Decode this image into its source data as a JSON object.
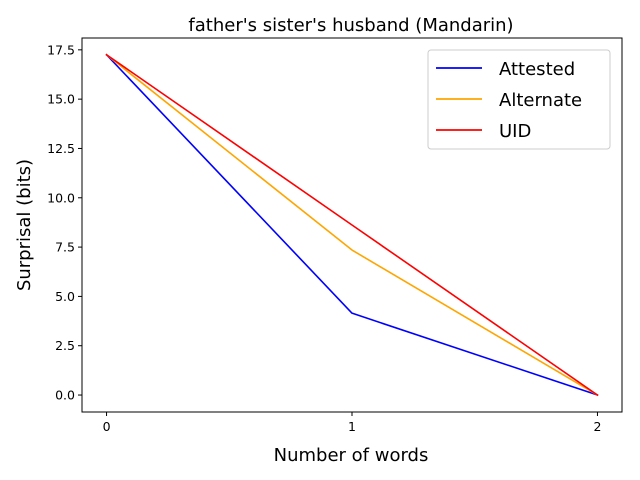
{
  "chart_data": {
    "type": "line",
    "title": "father's sister's husband (Mandarin)",
    "xlabel": "Number of words",
    "ylabel": "Surprisal (bits)",
    "x": [
      0,
      1,
      2
    ],
    "xlim": [
      -0.1,
      2.1
    ],
    "ylim": [
      -0.86,
      18.1
    ],
    "xticks": [
      0,
      1,
      2
    ],
    "xtick_labels": [
      "0",
      "1",
      "2"
    ],
    "yticks": [
      0.0,
      2.5,
      5.0,
      7.5,
      10.0,
      12.5,
      15.0,
      17.5
    ],
    "ytick_labels": [
      "0.0",
      "2.5",
      "5.0",
      "7.5",
      "10.0",
      "12.5",
      "15.0",
      "17.5"
    ],
    "grid": false,
    "legend_position": "top-right",
    "series": [
      {
        "name": "Attested",
        "color": "#0000ff",
        "values": [
          17.25,
          4.15,
          0.0
        ]
      },
      {
        "name": "Alternate",
        "color": "#ffa500",
        "values": [
          17.25,
          7.35,
          0.0
        ]
      },
      {
        "name": "UID",
        "color": "#ff0000",
        "values": [
          17.25,
          8.62,
          0.0
        ]
      }
    ]
  }
}
